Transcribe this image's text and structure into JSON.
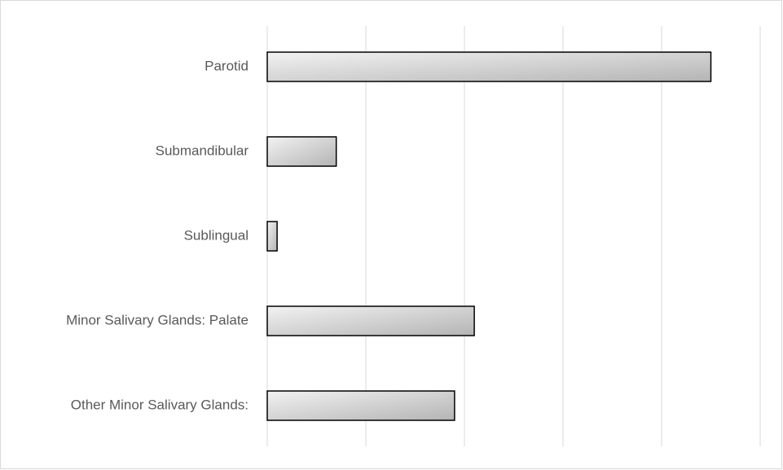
{
  "chart_data": {
    "type": "hbar",
    "categories": [
      "Parotid",
      "Submandibular",
      "Sublingual",
      "Minor Salivary Glands: Palate",
      "Other Minor Salivary Glands:"
    ],
    "values": [
      4.5,
      0.7,
      0.1,
      2.1,
      1.9
    ],
    "color": "#b4b4b4",
    "xlim": [
      0,
      5
    ],
    "xticks": [
      0,
      1,
      2,
      3,
      4,
      5
    ],
    "grid": true
  }
}
